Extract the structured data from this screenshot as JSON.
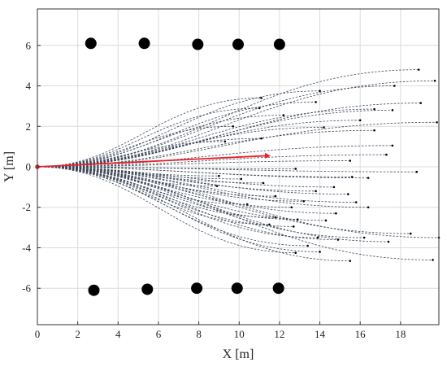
{
  "chart_data": {
    "type": "line",
    "xlabel": "X [m]",
    "ylabel": "Y [m]",
    "xlim": [
      0,
      19.9
    ],
    "ylim": [
      -7.8,
      7.8
    ],
    "xticks": [
      0,
      2,
      4,
      6,
      8,
      10,
      12,
      14,
      16,
      18
    ],
    "yticks": [
      6,
      4,
      2,
      0,
      -2,
      -4,
      -6
    ],
    "grid": true,
    "legend": "none",
    "obstacles": [
      {
        "x": 2.65,
        "y": 6.1
      },
      {
        "x": 5.3,
        "y": 6.1
      },
      {
        "x": 7.95,
        "y": 6.05
      },
      {
        "x": 9.95,
        "y": 6.05
      },
      {
        "x": 12.0,
        "y": 6.05
      },
      {
        "x": 2.8,
        "y": -6.1
      },
      {
        "x": 5.45,
        "y": -6.05
      },
      {
        "x": 7.9,
        "y": -6.0
      },
      {
        "x": 9.9,
        "y": -6.0
      },
      {
        "x": 11.95,
        "y": -6.0
      }
    ],
    "candidate_path_endpoints": [
      {
        "x": 18.9,
        "y": 4.8
      },
      {
        "x": 19.7,
        "y": 4.25
      },
      {
        "x": 17.7,
        "y": 4.0
      },
      {
        "x": 14.0,
        "y": 3.75
      },
      {
        "x": 19.0,
        "y": 3.15
      },
      {
        "x": 13.8,
        "y": 3.2
      },
      {
        "x": 11.1,
        "y": 3.4
      },
      {
        "x": 17.6,
        "y": 2.8
      },
      {
        "x": 16.7,
        "y": 2.85
      },
      {
        "x": 11.0,
        "y": 2.9
      },
      {
        "x": 16.0,
        "y": 2.3
      },
      {
        "x": 19.8,
        "y": 2.2
      },
      {
        "x": 12.2,
        "y": 2.55
      },
      {
        "x": 9.7,
        "y": 2.0
      },
      {
        "x": 16.7,
        "y": 1.8
      },
      {
        "x": 14.2,
        "y": 1.95
      },
      {
        "x": 11.1,
        "y": 1.4
      },
      {
        "x": 17.6,
        "y": 1.05
      },
      {
        "x": 9.3,
        "y": 1.25
      },
      {
        "x": 17.3,
        "y": 0.6
      },
      {
        "x": 15.5,
        "y": 0.3
      },
      {
        "x": 12.8,
        "y": -0.1
      },
      {
        "x": 18.8,
        "y": -0.25
      },
      {
        "x": 9.0,
        "y": -0.45
      },
      {
        "x": 16.4,
        "y": -0.55
      },
      {
        "x": 10.1,
        "y": -0.6
      },
      {
        "x": 15.6,
        "y": -0.5
      },
      {
        "x": 11.2,
        "y": -0.8
      },
      {
        "x": 14.7,
        "y": -1.0
      },
      {
        "x": 8.9,
        "y": -0.95
      },
      {
        "x": 13.8,
        "y": -1.2
      },
      {
        "x": 15.4,
        "y": -1.35
      },
      {
        "x": 11.8,
        "y": -1.45
      },
      {
        "x": 13.2,
        "y": -1.7
      },
      {
        "x": 15.8,
        "y": -1.75
      },
      {
        "x": 10.4,
        "y": -1.85
      },
      {
        "x": 16.4,
        "y": -2.0
      },
      {
        "x": 12.6,
        "y": -2.0
      },
      {
        "x": 14.8,
        "y": -2.3
      },
      {
        "x": 11.8,
        "y": -2.5
      },
      {
        "x": 14.3,
        "y": -2.65
      },
      {
        "x": 12.9,
        "y": -2.6
      },
      {
        "x": 11.5,
        "y": -2.85
      },
      {
        "x": 12.7,
        "y": -2.95
      },
      {
        "x": 18.5,
        "y": -3.3
      },
      {
        "x": 19.9,
        "y": -3.5
      },
      {
        "x": 16.2,
        "y": -3.5
      },
      {
        "x": 13.9,
        "y": -3.5
      },
      {
        "x": 17.4,
        "y": -3.7
      },
      {
        "x": 14.9,
        "y": -3.6
      },
      {
        "x": 13.4,
        "y": -3.9
      },
      {
        "x": 12.8,
        "y": -4.25
      },
      {
        "x": 14.0,
        "y": -4.2
      },
      {
        "x": 19.6,
        "y": -4.6
      },
      {
        "x": 15.5,
        "y": -4.65
      }
    ],
    "selected_path": {
      "start": {
        "x": 0,
        "y": 0
      },
      "end": {
        "x": 11.4,
        "y": 0.55
      }
    },
    "colors": {
      "candidate": "#3d4657",
      "selected": "#e8202a",
      "obstacle": "#000000",
      "grid": "#dcdcdc"
    }
  }
}
